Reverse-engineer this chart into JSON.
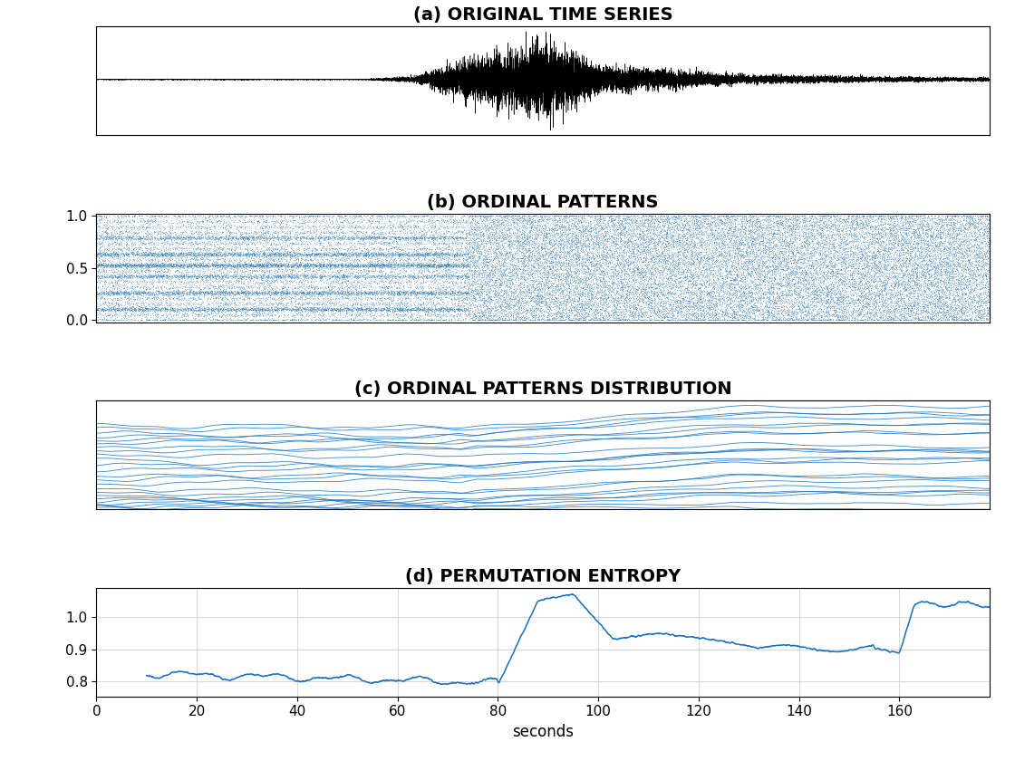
{
  "title_a": "(a) ORIGINAL TIME SERIES",
  "title_b": "(b) ORDINAL PATTERNS",
  "title_c": "(c) ORDINAL PATTERNS DISTRIBUTION",
  "title_d": "(d) PERMUTATION ENTROPY",
  "xlabel": "seconds",
  "bg_color": "#ffffff",
  "line_color_ts": "#000000",
  "line_color_blue": "#1571c0",
  "x_max": 178,
  "entropy_yticks": [
    0.8,
    0.9,
    1.0
  ],
  "ordinal_yticks": [
    0,
    0.5,
    1
  ],
  "xticks": [
    0,
    20,
    40,
    60,
    80,
    100,
    120,
    140,
    160
  ],
  "title_fontsize": 14
}
